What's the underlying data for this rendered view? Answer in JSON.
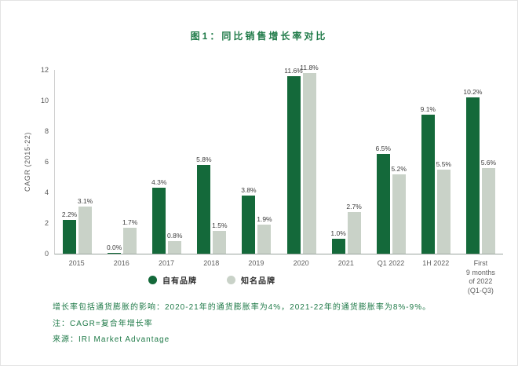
{
  "title": "图1：同比销售增长率对比",
  "colors": {
    "private_label_green": "#14693a",
    "name_brand_gray": "#c9d2c8",
    "accent_green": "#1f7a48"
  },
  "chart_data": {
    "type": "bar",
    "categories": [
      "2015",
      "2016",
      "2017",
      "2018",
      "2019",
      "2020",
      "2021",
      "Q1 2022",
      "1H 2022",
      "First\n9 months\nof 2022\n(Q1-Q3)"
    ],
    "series": [
      {
        "name": "自有品牌",
        "color": "#14693a",
        "values": [
          2.2,
          0.0,
          4.3,
          5.8,
          3.8,
          11.6,
          1.0,
          6.5,
          9.1,
          10.2
        ]
      },
      {
        "name": "知名品牌",
        "color": "#c9d2c8",
        "values": [
          3.1,
          1.7,
          0.8,
          1.5,
          1.9,
          11.8,
          2.7,
          5.2,
          5.5,
          5.6
        ]
      }
    ],
    "title": "图1：同比销售增长率对比",
    "xlabel": "",
    "ylabel": "CAGR (2015-22)",
    "ylim": [
      0,
      12
    ],
    "yticks": [
      0,
      2,
      4,
      6,
      8,
      10,
      12
    ],
    "value_suffix": "%",
    "grid": false,
    "legend_position": "bottom"
  },
  "footnotes": [
    "增长率包括通货膨胀的影响：2020-21年的通货膨胀率为4%，2021-22年的通货膨胀率为8%-9%。",
    "注：CAGR=复合年增长率",
    "来源：IRI Market Advantage"
  ]
}
